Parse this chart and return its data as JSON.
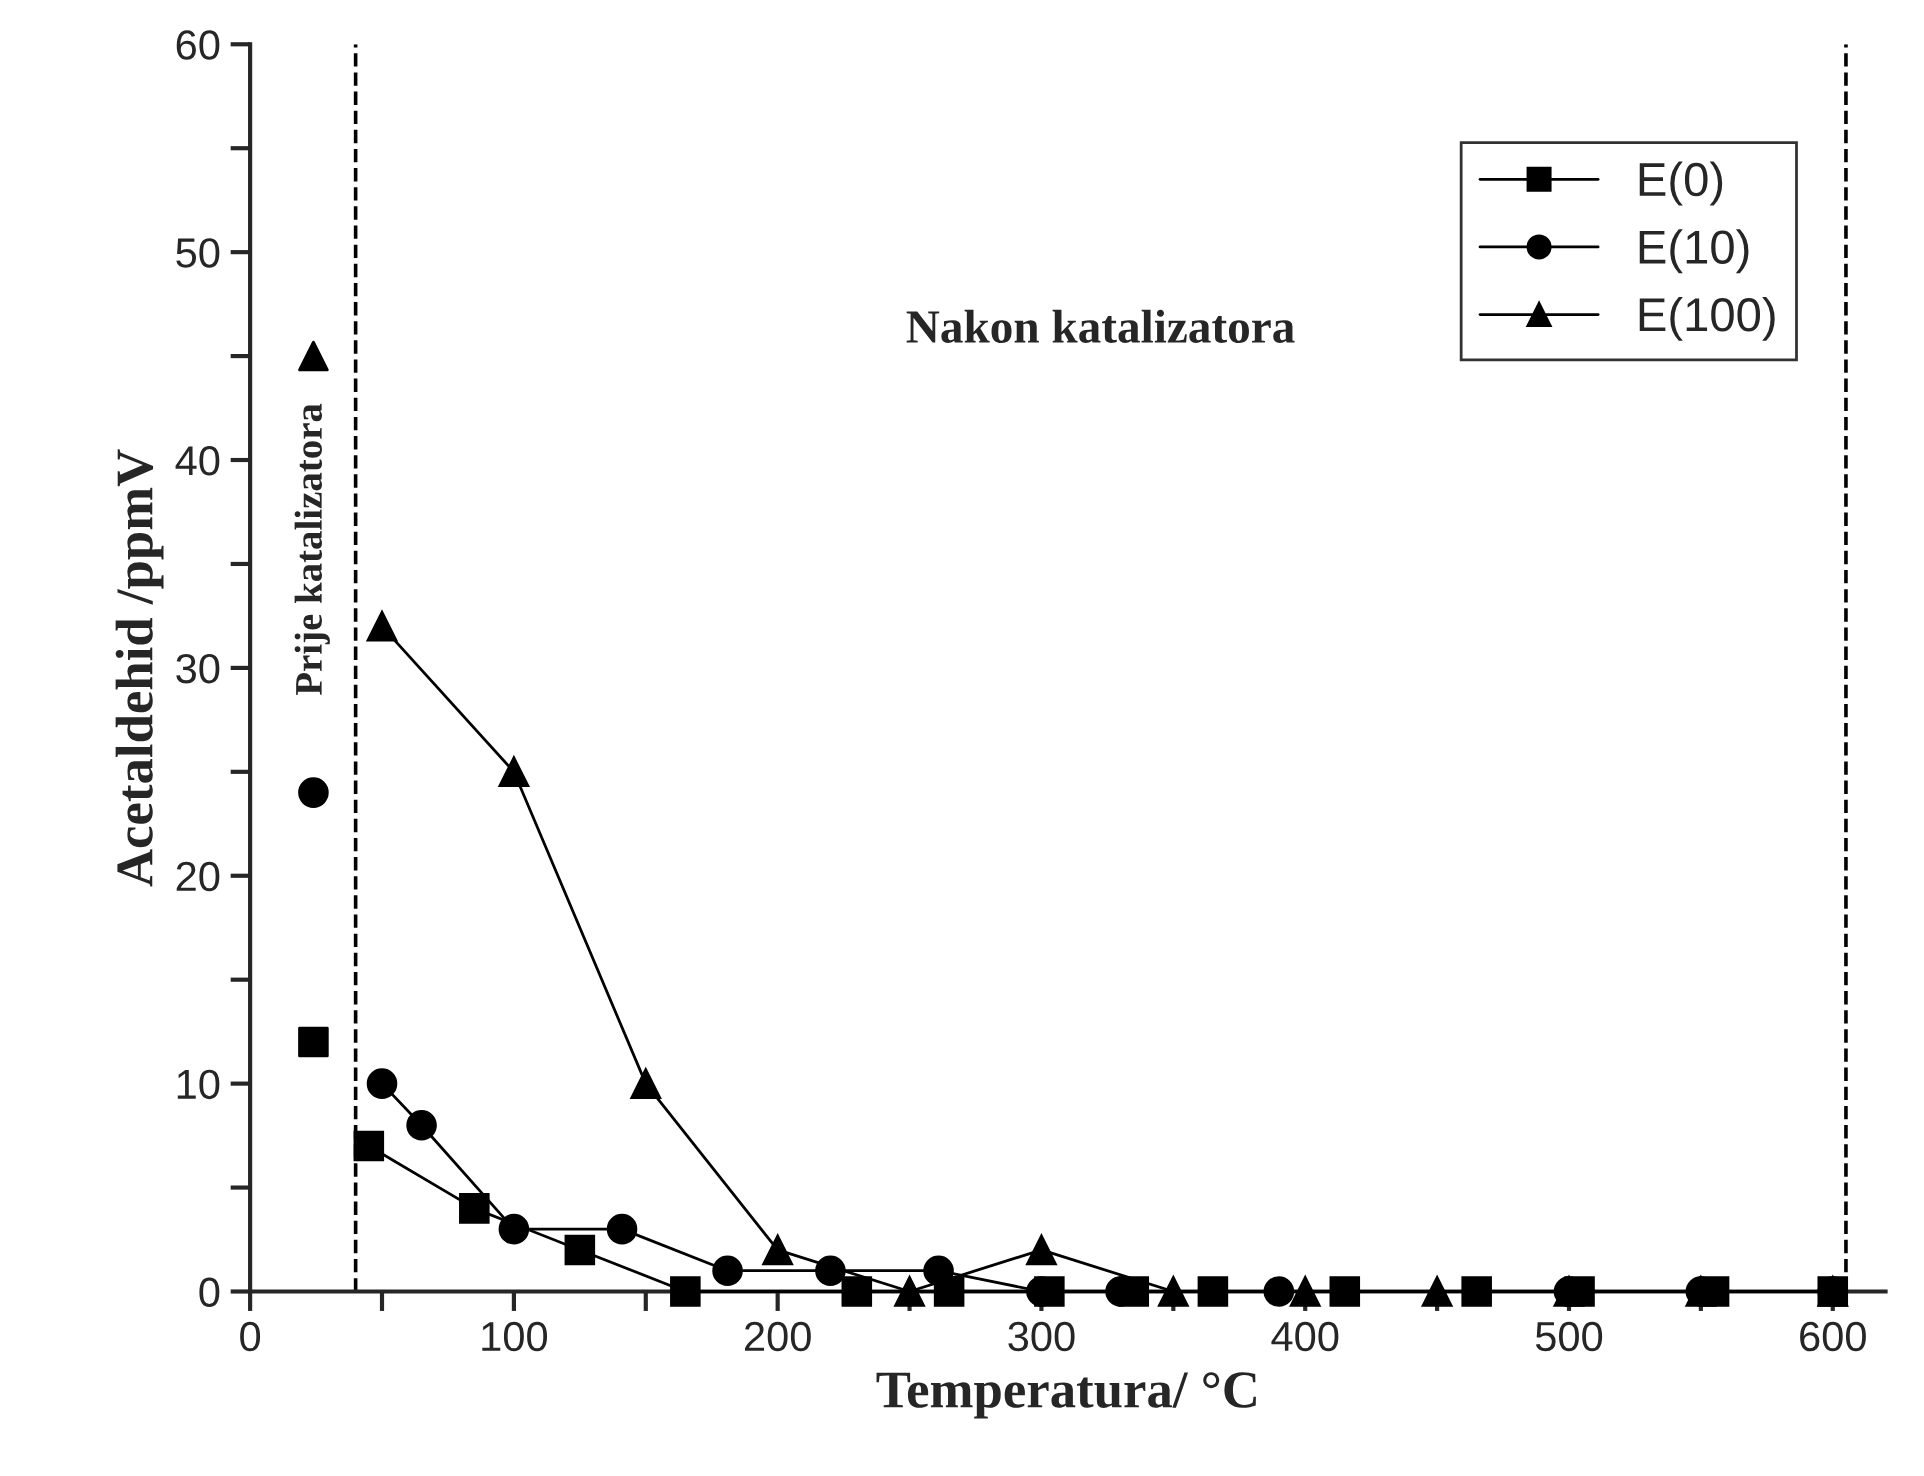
{
  "chart_data": {
    "type": "line",
    "xlabel": "Temperatura/ °C",
    "ylabel": "Acetaldehid /ppmV",
    "xlim": [
      0,
      620
    ],
    "ylim": [
      0,
      60
    ],
    "xticks": [
      0,
      {
        "value": 50,
        "label": null
      },
      100,
      {
        "value": 150,
        "label": null
      },
      200,
      {
        "value": 250,
        "label": null
      },
      300,
      {
        "value": 350,
        "label": null
      },
      400,
      {
        "value": 450,
        "label": null
      },
      500,
      {
        "value": 550,
        "label": null
      },
      600
    ],
    "yticks": [
      0,
      {
        "value": 5,
        "label": null
      },
      10,
      {
        "value": 15,
        "label": null
      },
      20,
      {
        "value": 25,
        "label": null
      },
      30,
      {
        "value": 35,
        "label": null
      },
      40,
      {
        "value": 45,
        "label": null
      },
      50,
      {
        "value": 55,
        "label": null
      },
      60
    ],
    "legend": "top right",
    "grid": false,
    "series": [
      {
        "name": "E(0)",
        "color": "#000000",
        "marker": "square",
        "x": [
          45,
          85,
          125,
          165,
          230,
          265,
          303,
          335,
          365,
          415,
          465,
          504,
          555,
          600
        ],
        "values": [
          7,
          4,
          2,
          0,
          0,
          0,
          0,
          0,
          0,
          0,
          0,
          0,
          0,
          0
        ]
      },
      {
        "name": "E(10)",
        "color": "#000000",
        "marker": "circle",
        "x": [
          50,
          65,
          100,
          141,
          181,
          220,
          261,
          300,
          330,
          390,
          500,
          550,
          600
        ],
        "values": [
          10,
          8,
          3,
          3,
          1,
          1,
          1,
          0,
          0,
          0,
          0,
          0,
          0
        ]
      },
      {
        "name": "E(100)",
        "color": "#000000",
        "marker": "triangle",
        "x": [
          50,
          100,
          150,
          200,
          250,
          300,
          350,
          400,
          450,
          500,
          550,
          600
        ],
        "values": [
          32,
          25,
          10,
          2,
          0,
          2,
          0,
          0,
          0,
          0,
          0,
          0
        ]
      },
      {
        "type": "scatter",
        "color": "#000000",
        "marker": "square",
        "x": [
          24
        ],
        "values": [
          12
        ]
      },
      {
        "type": "scatter",
        "color": "#000000",
        "marker": "circle",
        "x": [
          24
        ],
        "values": [
          24
        ]
      },
      {
        "type": "scatter",
        "color": "#000000",
        "marker": "triangle",
        "x": [
          24
        ],
        "values": [
          45
        ]
      }
    ],
    "ref_lines": [
      {
        "axis": "x",
        "value": 40,
        "color": "#000000",
        "line_style": "dashed"
      },
      {
        "axis": "x",
        "value": 605,
        "color": "#000000",
        "line_style": "dashed"
      }
    ],
    "annotations": [
      "Nakon katalizatora",
      "Prije katalizatora"
    ]
  }
}
